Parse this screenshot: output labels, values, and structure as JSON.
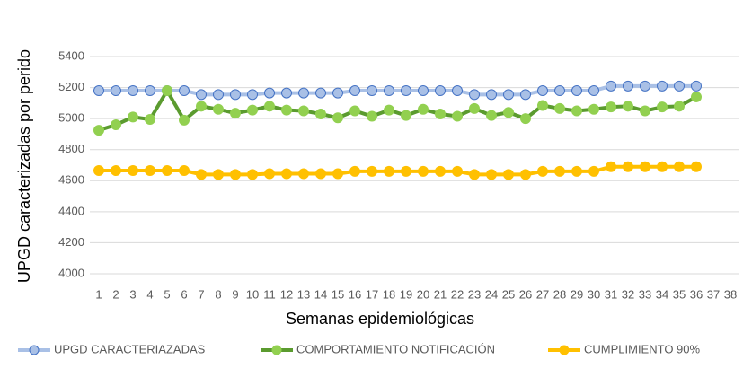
{
  "chart_data": {
    "type": "line",
    "x_label": "Semanas epidemiológicas",
    "y_label": "UPGD caracterizadas por perido",
    "categories": [
      "1",
      "2",
      "3",
      "4",
      "5",
      "6",
      "7",
      "8",
      "9",
      "10",
      "11",
      "12",
      "13",
      "14",
      "15",
      "16",
      "17",
      "18",
      "19",
      "20",
      "21",
      "22",
      "23",
      "24",
      "25",
      "26",
      "27",
      "28",
      "29",
      "30",
      "31",
      "32",
      "33",
      "34",
      "35",
      "36",
      "37",
      "38"
    ],
    "series": [
      {
        "name": "UPGD CARACTERIAZADAS",
        "color": "#4472c4",
        "line_color": "#a9c0e6",
        "values": [
          5180,
          5180,
          5180,
          5180,
          5180,
          5180,
          5155,
          5155,
          5155,
          5155,
          5165,
          5165,
          5165,
          5165,
          5165,
          5180,
          5180,
          5180,
          5180,
          5180,
          5180,
          5180,
          5155,
          5155,
          5155,
          5155,
          5180,
          5180,
          5180,
          5180,
          5210,
          5210,
          5210,
          5210,
          5210,
          5210,
          null,
          null
        ]
      },
      {
        "name": "COMPORTAMIENTO NOTIFICACIÓN",
        "color": "#92d050",
        "line_color": "#5b9b2f",
        "values": [
          4925,
          4960,
          5010,
          4995,
          5180,
          4990,
          5080,
          5060,
          5035,
          5055,
          5080,
          5055,
          5050,
          5030,
          5005,
          5050,
          5015,
          5055,
          5020,
          5060,
          5030,
          5015,
          5065,
          5020,
          5040,
          5000,
          5085,
          5065,
          5050,
          5060,
          5075,
          5080,
          5050,
          5075,
          5080,
          5140,
          null,
          null
        ]
      },
      {
        "name": "CUMPLIMIENTO 90%",
        "color": "#ffc000",
        "line_color": "#ffc000",
        "values": [
          4665,
          4665,
          4665,
          4665,
          4665,
          4665,
          4640,
          4640,
          4640,
          4640,
          4645,
          4645,
          4645,
          4645,
          4645,
          4660,
          4660,
          4660,
          4660,
          4660,
          4660,
          4660,
          4640,
          4640,
          4640,
          4640,
          4660,
          4660,
          4660,
          4660,
          4690,
          4690,
          4690,
          4690,
          4690,
          4690,
          null,
          null
        ]
      }
    ],
    "ylim": [
      4000,
      5400
    ],
    "yticks": [
      4000,
      4200,
      4400,
      4600,
      4800,
      5000,
      5200,
      5400
    ],
    "grid": true,
    "legend": "bottom"
  }
}
